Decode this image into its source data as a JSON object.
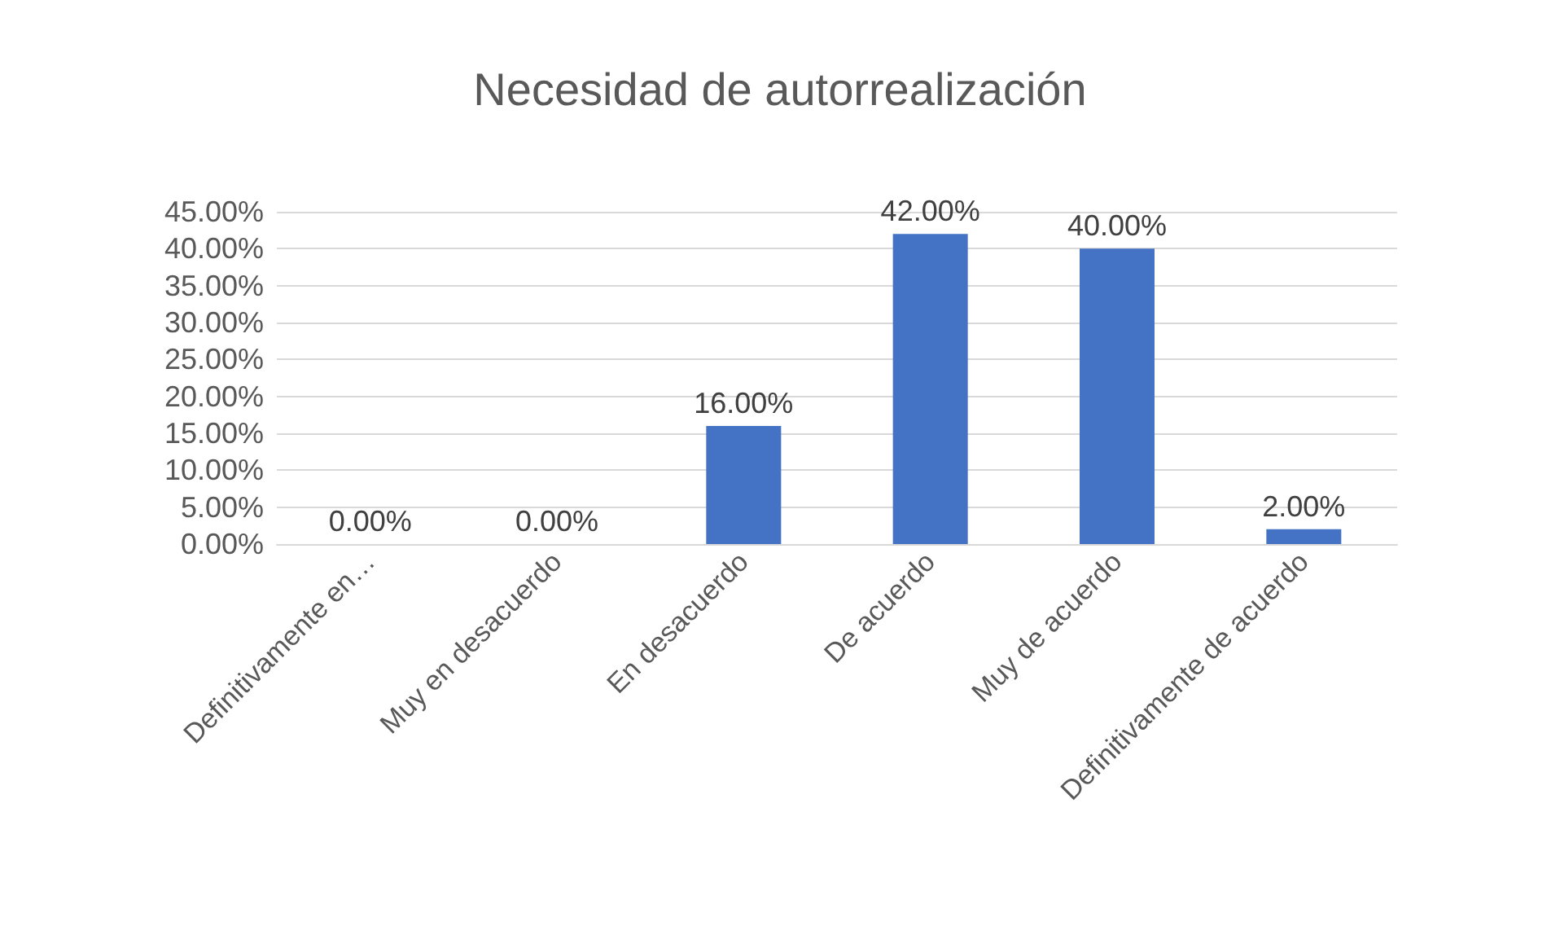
{
  "chart_data": {
    "type": "bar",
    "title": "Necesidad de autorrealización",
    "categories": [
      "Definitivamente en…",
      "Muy en desacuerdo",
      "En desacuerdo",
      "De acuerdo",
      "Muy de acuerdo",
      "Definitivamente de acuerdo"
    ],
    "values": [
      0,
      0,
      16,
      42,
      40,
      2
    ],
    "value_labels": [
      "0.00%",
      "0.00%",
      "16.00%",
      "42.00%",
      "40.00%",
      "2.00%"
    ],
    "color": "#4472c4",
    "ylim": [
      0,
      45
    ],
    "yticks": [
      {
        "value": 0,
        "label": "0.00%"
      },
      {
        "value": 5,
        "label": "5.00%"
      },
      {
        "value": 10,
        "label": "10.00%"
      },
      {
        "value": 15,
        "label": "15.00%"
      },
      {
        "value": 20,
        "label": "20.00%"
      },
      {
        "value": 25,
        "label": "25.00%"
      },
      {
        "value": 30,
        "label": "30.00%"
      },
      {
        "value": 35,
        "label": "35.00%"
      },
      {
        "value": 40,
        "label": "40.00%"
      },
      {
        "value": 45,
        "label": "45.00%"
      }
    ],
    "grid": "y"
  }
}
